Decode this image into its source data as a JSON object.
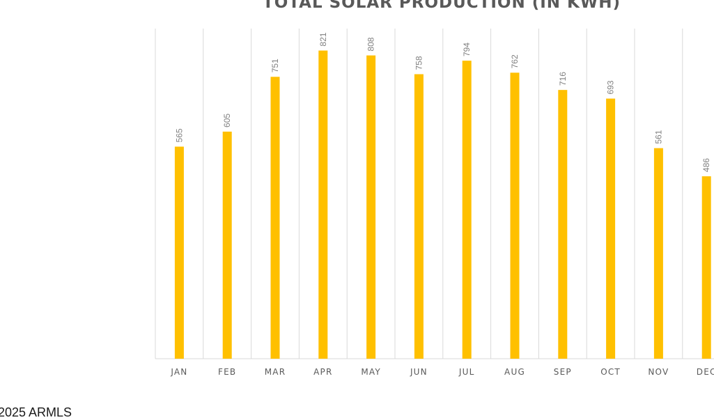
{
  "chart_data": {
    "type": "bar",
    "title": "TOTAL SOLAR PRODUCTION (IN KWH)",
    "categories": [
      "JAN",
      "FEB",
      "MAR",
      "APR",
      "MAY",
      "JUN",
      "JUL",
      "AUG",
      "SEP",
      "OCT",
      "NOV",
      "DEC"
    ],
    "values": [
      565,
      605,
      751,
      821,
      808,
      758,
      794,
      762,
      716,
      693,
      561,
      486
    ],
    "xlabel": "",
    "ylabel": "",
    "ylim": [
      0,
      900
    ],
    "grid": "vertical",
    "legend": "none",
    "bar_color": "#FFC000",
    "data_labels": true
  },
  "footer": {
    "watermark": "2025 ARMLS"
  }
}
